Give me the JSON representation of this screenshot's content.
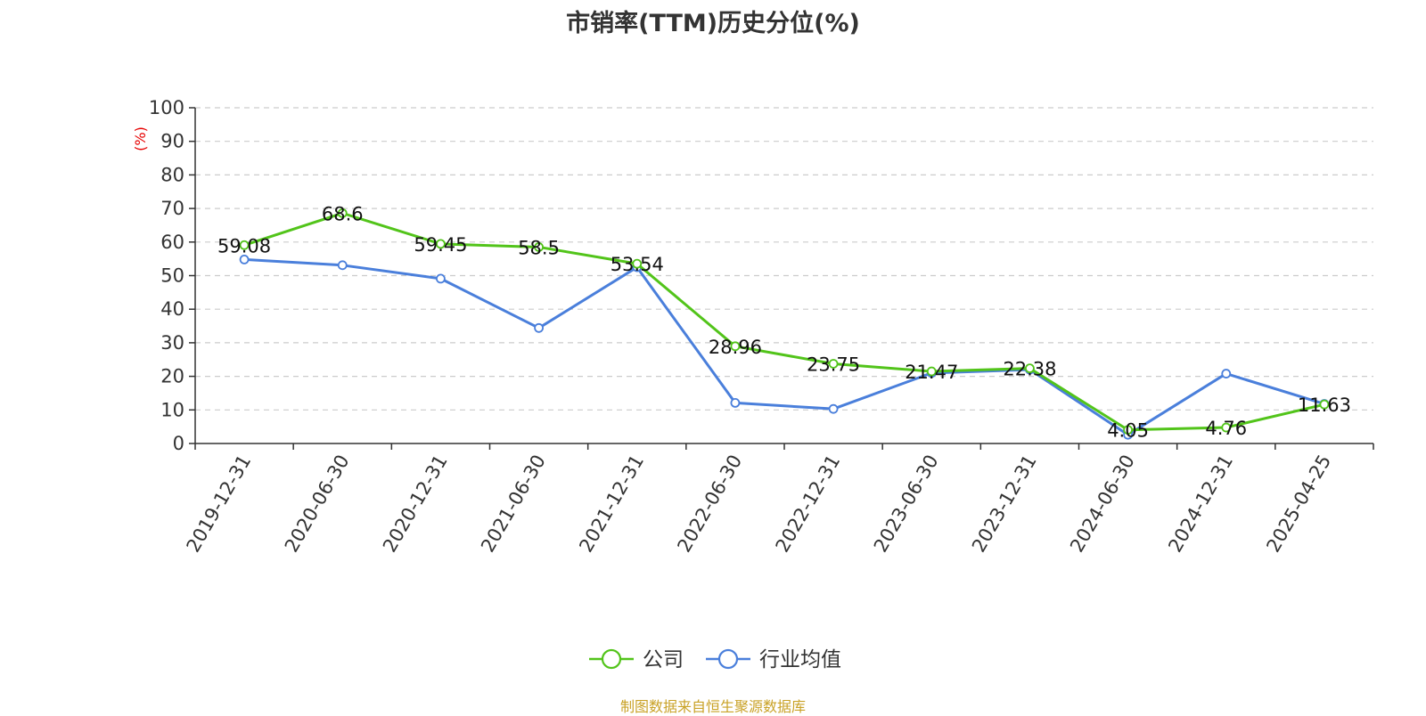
{
  "title": "市销率(TTM)历史分位(%)",
  "source": "制图数据来自恒生聚源数据库",
  "colors": {
    "company": "#52c41a",
    "industry": "#4a7fdb",
    "ylabel": "#e60000",
    "source": "#c9a227"
  },
  "chart_data": {
    "type": "line",
    "title": "市销率(TTM)历史分位(%)",
    "ylabel": "(%)",
    "xlabel": "",
    "ylim": [
      0,
      100
    ],
    "yticks": [
      0,
      10,
      20,
      30,
      40,
      50,
      60,
      70,
      80,
      90,
      100
    ],
    "grid": true,
    "legend_position": "bottom-center",
    "categories": [
      "2019-12-31",
      "2020-06-30",
      "2020-12-31",
      "2021-06-30",
      "2021-12-31",
      "2022-06-30",
      "2022-12-31",
      "2023-06-30",
      "2023-12-31",
      "2024-06-30",
      "2024-12-31",
      "2025-04-25"
    ],
    "series": [
      {
        "name": "公司",
        "color": "#52c41a",
        "values": [
          59.08,
          68.6,
          59.45,
          58.5,
          53.54,
          28.96,
          23.75,
          21.47,
          22.38,
          4.05,
          4.76,
          11.63
        ],
        "labels": [
          "59.08",
          "68.6",
          "59.45",
          "58.5",
          "53.54",
          "28.96",
          "23.75",
          "21.47",
          "22.38",
          "4.05",
          "4.76",
          "11.63"
        ]
      },
      {
        "name": "行业均值",
        "color": "#4a7fdb",
        "values": [
          54.8,
          53.1,
          49.1,
          34.4,
          52.5,
          12.1,
          10.3,
          21.0,
          22.0,
          2.6,
          20.8,
          11.8
        ]
      }
    ]
  }
}
